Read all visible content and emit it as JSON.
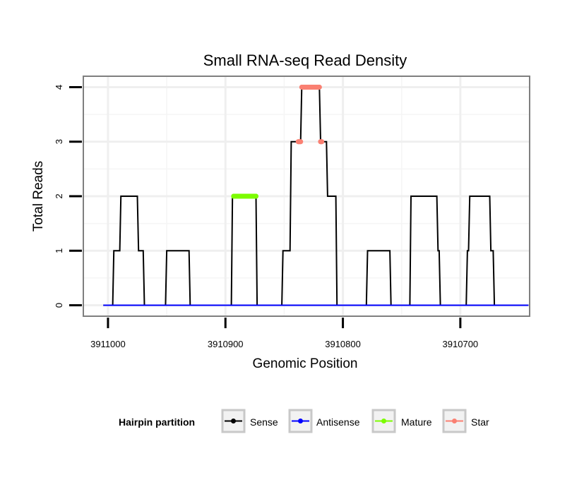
{
  "chart_data": {
    "type": "line",
    "title": "Small RNA-seq Read Density",
    "xlabel": "Genomic Position",
    "ylabel": "Total Reads",
    "xlim": [
      3911021,
      3910641
    ],
    "ylim": [
      -0.2,
      4.2
    ],
    "x_reversed": true,
    "grid": true,
    "x_ticks": [
      3911000,
      3910900,
      3910800,
      3910700
    ],
    "x_tick_labels": [
      "3911000",
      "3910900",
      "3910800",
      "3910700"
    ],
    "y_ticks": [
      0,
      1,
      2,
      3,
      4
    ],
    "y_tick_labels": [
      "0",
      "1",
      "2",
      "3",
      "4"
    ],
    "legend": {
      "title": "Hairpin partition",
      "position": "bottom",
      "entries": [
        {
          "name": "Sense",
          "color": "#000000"
        },
        {
          "name": "Antisense",
          "color": "#0000ff"
        },
        {
          "name": "Mature",
          "color": "#7cfc00"
        },
        {
          "name": "Star",
          "color": "#fa8072"
        }
      ]
    },
    "series": [
      {
        "name": "Sense",
        "color": "#000000",
        "x": [
          3911004,
          3910996,
          3910995,
          3910990,
          3910989,
          3910975,
          3910974,
          3910970,
          3910969,
          3910951,
          3910950,
          3910931,
          3910930,
          3910895,
          3910894,
          3910874,
          3910873,
          3910852,
          3910851,
          3910845,
          3910844,
          3910836,
          3910835,
          3910820,
          3910819,
          3910814,
          3910813,
          3910806,
          3910805,
          3910780,
          3910779,
          3910760,
          3910759,
          3910743,
          3910742,
          3910720,
          3910719,
          3910718,
          3910717,
          3910695,
          3910694,
          3910693,
          3910692,
          3910675,
          3910674,
          3910672,
          3910671,
          3910656,
          3910655,
          3910650,
          3910649,
          3910642
        ],
        "y": [
          0,
          0,
          1,
          1,
          2,
          2,
          1,
          1,
          0,
          0,
          1,
          1,
          0,
          0,
          2,
          2,
          0,
          0,
          1,
          1,
          3,
          3,
          4,
          4,
          3,
          3,
          2,
          2,
          0,
          0,
          1,
          1,
          0,
          0,
          2,
          2,
          1,
          1,
          0,
          0,
          1,
          1,
          2,
          2,
          1,
          1,
          0,
          0,
          0,
          0,
          0,
          0
        ]
      },
      {
        "name": "Antisense",
        "color": "#0000ff",
        "x": [
          3911004,
          3910642
        ],
        "y": [
          0,
          0
        ]
      },
      {
        "name": "Mature",
        "color": "#7cfc00",
        "x": [
          3910893,
          3910874
        ],
        "y": [
          2,
          2
        ]
      },
      {
        "name": "Star",
        "color": "#fa8072",
        "x": [
          3910838,
          3910836,
          3910835,
          3910820,
          3910819,
          3910818
        ],
        "y": [
          3,
          3,
          4,
          4,
          3,
          3
        ]
      }
    ]
  }
}
